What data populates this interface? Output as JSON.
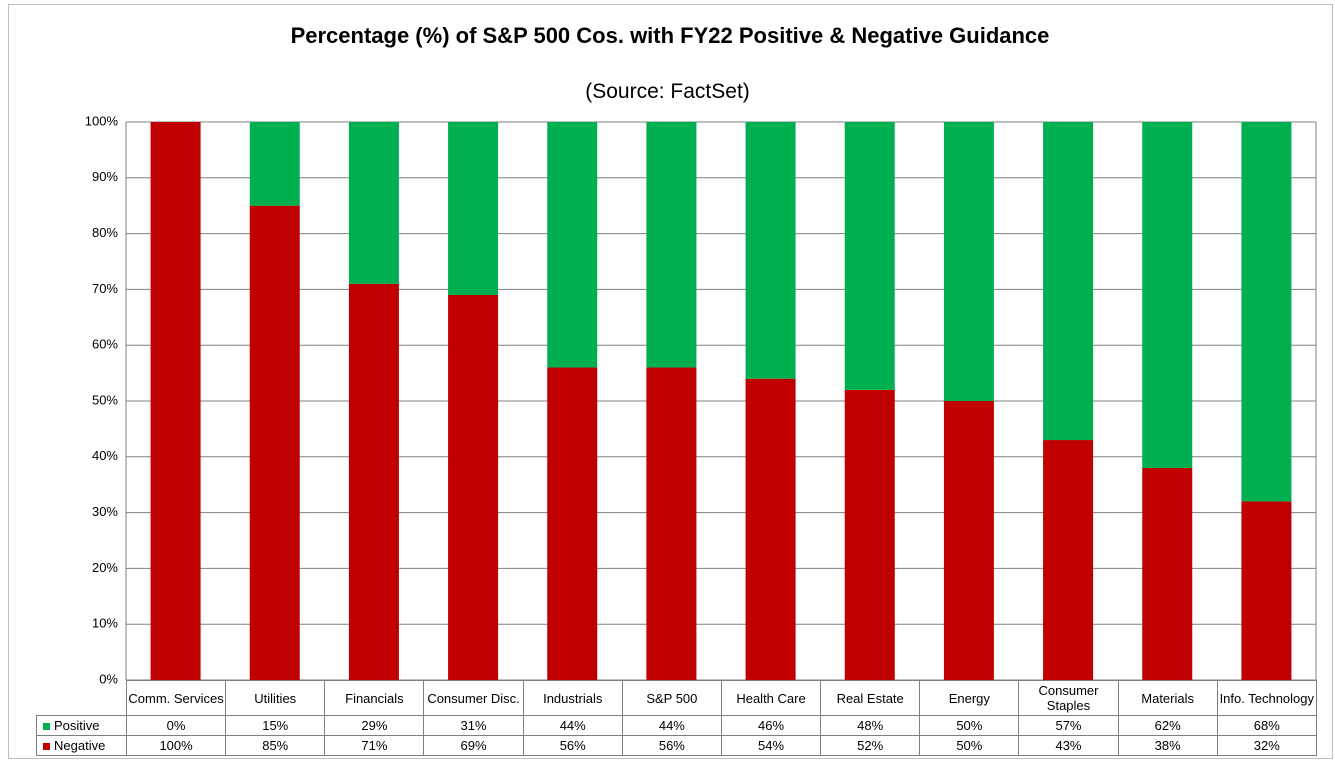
{
  "chart_data": {
    "type": "bar",
    "stacked": true,
    "title": "Percentage (%) of S&P 500 Cos. with FY22 Positive & Negative Guidance",
    "subtitle": "(Source: FactSet)",
    "categories": [
      "Comm. Services",
      "Utilities",
      "Financials",
      "Consumer Disc.",
      "Industrials",
      "S&P 500",
      "Health Care",
      "Real Estate",
      "Energy",
      "Consumer Staples",
      "Materials",
      "Info. Technology"
    ],
    "series": [
      {
        "name": "Negative",
        "color": "#c00000",
        "values": [
          100,
          85,
          71,
          69,
          56,
          56,
          54,
          52,
          50,
          43,
          38,
          32
        ],
        "value_labels": [
          "100%",
          "85%",
          "71%",
          "69%",
          "56%",
          "56%",
          "54%",
          "52%",
          "50%",
          "43%",
          "38%",
          "32%"
        ]
      },
      {
        "name": "Positive",
        "color": "#00b050",
        "values": [
          0,
          15,
          29,
          31,
          44,
          44,
          46,
          48,
          50,
          57,
          62,
          68
        ],
        "value_labels": [
          "0%",
          "15%",
          "29%",
          "31%",
          "44%",
          "44%",
          "46%",
          "48%",
          "50%",
          "57%",
          "62%",
          "68%"
        ]
      }
    ],
    "ylim": [
      0,
      100
    ],
    "yticks": [
      {
        "value": 0,
        "label": "0%"
      },
      {
        "value": 10,
        "label": "10%"
      },
      {
        "value": 20,
        "label": "20%"
      },
      {
        "value": 30,
        "label": "30%"
      },
      {
        "value": 40,
        "label": "40%"
      },
      {
        "value": 50,
        "label": "50%"
      },
      {
        "value": 60,
        "label": "60%"
      },
      {
        "value": 70,
        "label": "70%"
      },
      {
        "value": 80,
        "label": "80%"
      },
      {
        "value": 90,
        "label": "90%"
      },
      {
        "value": 100,
        "label": "100%"
      }
    ],
    "grid": true
  }
}
